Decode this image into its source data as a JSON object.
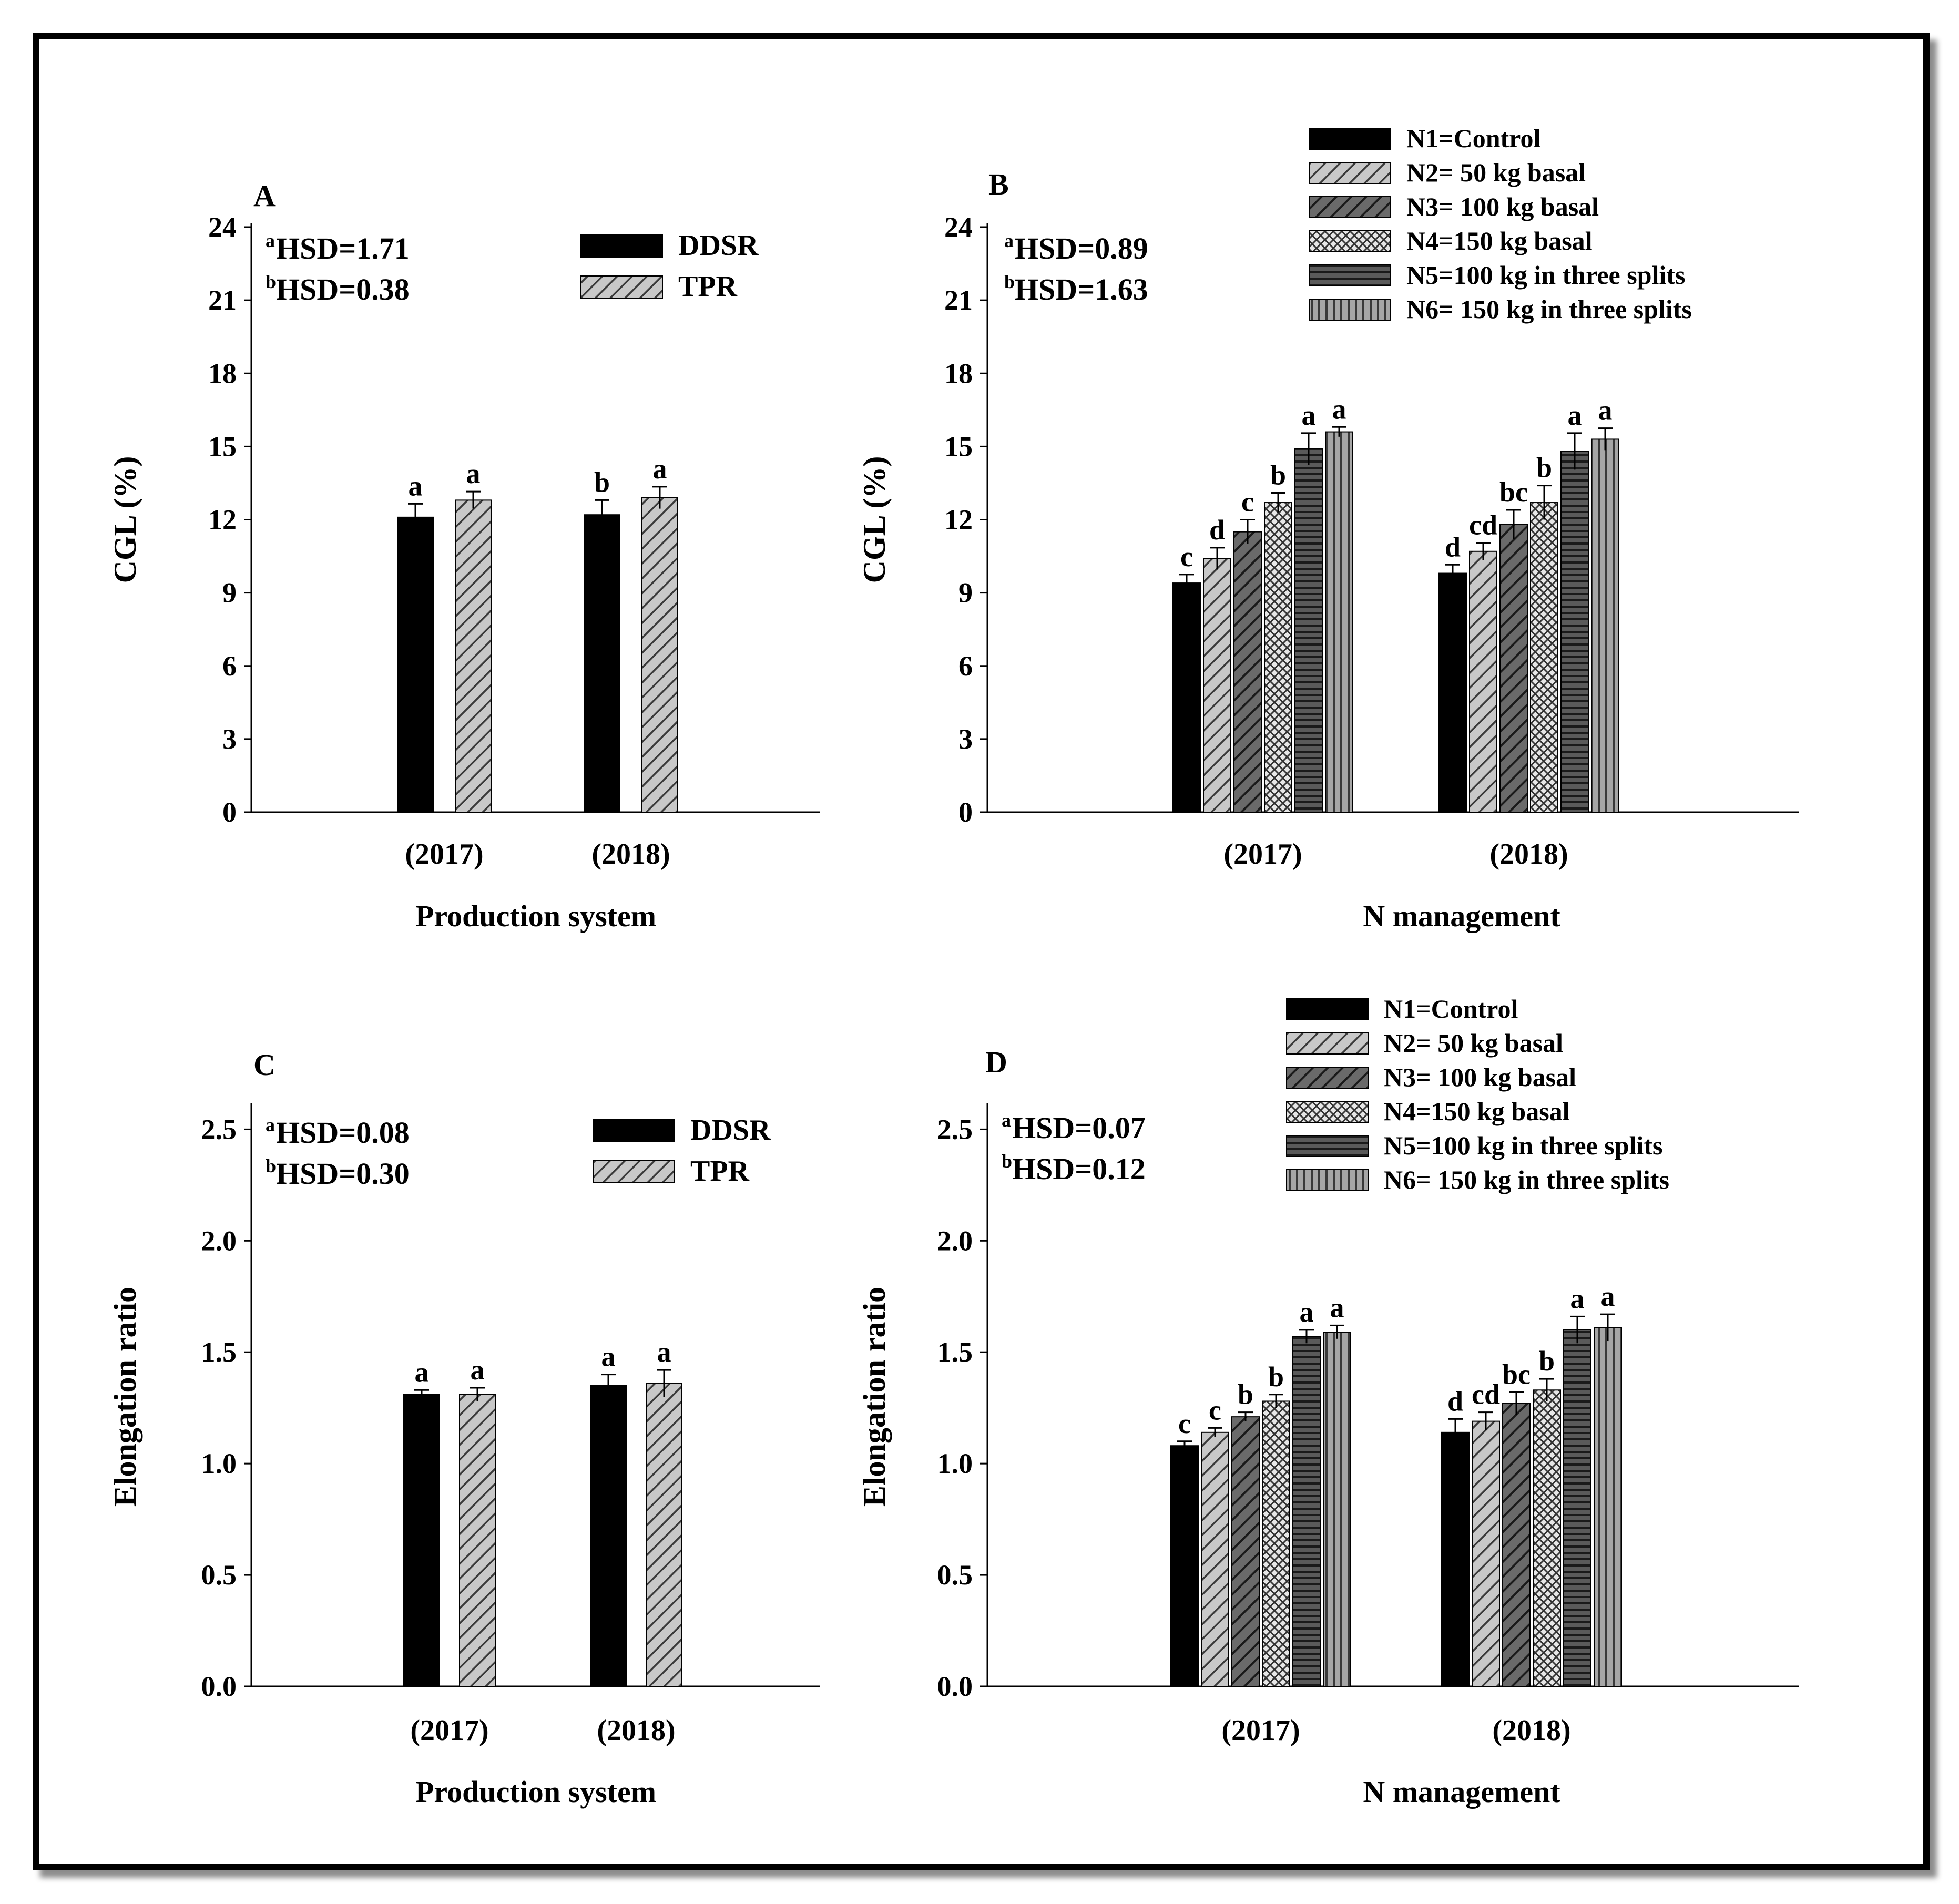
{
  "colors": {
    "ink": "#000000",
    "dark_bar": "#000000",
    "hatch_fill": "#a8a8a8",
    "dark_hatch_fill": "#4a4a4a",
    "background": "#ffffff"
  },
  "chart_data": [
    {
      "panel": "A",
      "type": "bar",
      "ylabel": "CGL (%)",
      "xlabel": "Production system",
      "categories": [
        "(2017)",
        "(2018)"
      ],
      "ylim": [
        0,
        24
      ],
      "yticks": [
        0,
        3,
        6,
        9,
        12,
        15,
        18,
        21,
        24
      ],
      "hsd": [
        {
          "sup": "a",
          "text": "HSD=1.71"
        },
        {
          "sup": "b",
          "text": "HSD=0.38"
        }
      ],
      "legend_placement": "top-right",
      "series": [
        {
          "name": "DDSR",
          "pattern": "solid",
          "values": [
            12.1,
            12.2
          ],
          "errors": [
            0.55,
            0.6
          ],
          "letters": [
            "a",
            "b"
          ]
        },
        {
          "name": "TPR",
          "pattern": "diag",
          "values": [
            12.8,
            12.9
          ],
          "errors": [
            0.35,
            0.45
          ],
          "letters": [
            "a",
            "a"
          ]
        }
      ]
    },
    {
      "panel": "B",
      "type": "bar",
      "ylabel": "CGL (%)",
      "xlabel": "N management",
      "categories": [
        "(2017)",
        "(2018)"
      ],
      "ylim": [
        0,
        24
      ],
      "yticks": [
        0,
        3,
        6,
        9,
        12,
        15,
        18,
        21,
        24
      ],
      "hsd": [
        {
          "sup": "a",
          "text": "HSD=0.89"
        },
        {
          "sup": "b",
          "text": "HSD=1.63"
        }
      ],
      "legend_placement": "top-right",
      "series": [
        {
          "name": "N1=Control",
          "pattern": "solid",
          "values": [
            9.4,
            9.8
          ],
          "errors": [
            0.35,
            0.35
          ],
          "letters": [
            "c",
            "d"
          ]
        },
        {
          "name": "N2= 50 kg basal",
          "pattern": "diag",
          "values": [
            10.4,
            10.7
          ],
          "errors": [
            0.45,
            0.35
          ],
          "letters": [
            "d",
            "cd"
          ]
        },
        {
          "name": "N3= 100 kg basal",
          "pattern": "darkdiag",
          "values": [
            11.5,
            11.8
          ],
          "errors": [
            0.5,
            0.6
          ],
          "letters": [
            "c",
            "bc"
          ]
        },
        {
          "name": "N4=150 kg basal",
          "pattern": "cross",
          "values": [
            12.7,
            12.7
          ],
          "errors": [
            0.4,
            0.7
          ],
          "letters": [
            "b",
            "b"
          ]
        },
        {
          "name": "N5=100 kg in three splits",
          "pattern": "horiz",
          "values": [
            14.9,
            14.8
          ],
          "errors": [
            0.65,
            0.75
          ],
          "letters": [
            "a",
            "a"
          ]
        },
        {
          "name": "N6= 150 kg in three splits",
          "pattern": "vert",
          "values": [
            15.6,
            15.3
          ],
          "errors": [
            0.2,
            0.45
          ],
          "letters": [
            "a",
            "a"
          ]
        }
      ]
    },
    {
      "panel": "C",
      "type": "bar",
      "ylabel": "Elongation ratio",
      "xlabel": "Production system",
      "categories": [
        "(2017)",
        "(2018)"
      ],
      "ylim": [
        0,
        2.6
      ],
      "yticks": [
        0.0,
        0.5,
        1.0,
        1.5,
        2.0,
        2.5
      ],
      "yticklabels": [
        "0.0",
        "0.5",
        "1.0",
        "1.5",
        "2.0",
        "2.5"
      ],
      "hsd": [
        {
          "sup": "a",
          "text": "HSD=0.08"
        },
        {
          "sup": "b",
          "text": "HSD=0.30"
        }
      ],
      "legend_placement": "top-right",
      "series": [
        {
          "name": "DDSR",
          "pattern": "solid",
          "values": [
            1.31,
            1.35
          ],
          "errors": [
            0.02,
            0.05
          ],
          "letters": [
            "a",
            "a"
          ]
        },
        {
          "name": "TPR",
          "pattern": "diag",
          "values": [
            1.31,
            1.36
          ],
          "errors": [
            0.03,
            0.06
          ],
          "letters": [
            "a",
            "a"
          ]
        }
      ]
    },
    {
      "panel": "D",
      "type": "bar",
      "ylabel": "Elongation ratio",
      "xlabel": "N management",
      "categories": [
        "(2017)",
        "(2018)"
      ],
      "ylim": [
        0,
        2.6
      ],
      "yticks": [
        0.0,
        0.5,
        1.0,
        1.5,
        2.0,
        2.5
      ],
      "yticklabels": [
        "0.0",
        "0.5",
        "1.0",
        "1.5",
        "2.0",
        "2.5"
      ],
      "hsd": [
        {
          "sup": "a",
          "text": "HSD=0.07"
        },
        {
          "sup": "b",
          "text": "HSD=0.12"
        }
      ],
      "legend_placement": "top-right",
      "series": [
        {
          "name": "N1=Control",
          "pattern": "solid",
          "values": [
            1.08,
            1.14
          ],
          "errors": [
            0.02,
            0.06
          ],
          "letters": [
            "c",
            "d"
          ]
        },
        {
          "name": "N2= 50 kg basal",
          "pattern": "diag",
          "values": [
            1.14,
            1.19
          ],
          "errors": [
            0.02,
            0.04
          ],
          "letters": [
            "c",
            "cd"
          ]
        },
        {
          "name": "N3= 100 kg basal",
          "pattern": "darkdiag",
          "values": [
            1.21,
            1.27
          ],
          "errors": [
            0.02,
            0.05
          ],
          "letters": [
            "b",
            "bc"
          ]
        },
        {
          "name": "N4=150 kg basal",
          "pattern": "cross",
          "values": [
            1.28,
            1.33
          ],
          "errors": [
            0.03,
            0.05
          ],
          "letters": [
            "b",
            "b"
          ]
        },
        {
          "name": "N5=100 kg in three splits",
          "pattern": "horiz",
          "values": [
            1.57,
            1.6
          ],
          "errors": [
            0.03,
            0.06
          ],
          "letters": [
            "a",
            "a"
          ]
        },
        {
          "name": "N6= 150 kg in three splits",
          "pattern": "vert",
          "values": [
            1.59,
            1.61
          ],
          "errors": [
            0.03,
            0.06
          ],
          "letters": [
            "a",
            "a"
          ]
        }
      ]
    }
  ]
}
